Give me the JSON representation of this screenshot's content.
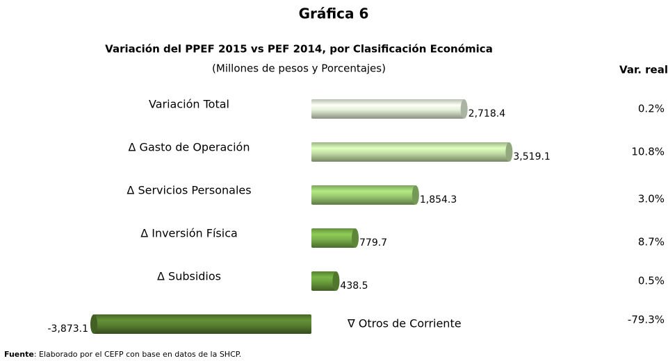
{
  "chart_data": {
    "type": "bar",
    "orientation": "horizontal",
    "title": "Gráfica 6",
    "subtitle": "Variación del PPEF 2015 vs PEF 2014, por Clasificación Económica",
    "units": "(Millones de pesos y Porcentajes)",
    "categories": [
      "Variación Total",
      "Δ Gasto de Operación",
      "Δ Servicios Personales",
      "Δ Inversión Física",
      "Δ Subsidios",
      "∇ Otros de Corriente"
    ],
    "values": [
      2718.4,
      3519.1,
      1854.3,
      779.7,
      438.5,
      -3873.1
    ],
    "value_labels": [
      "2,718.4",
      "3,519.1",
      "1,854.3",
      "779.7",
      "438.5",
      "-3,873.1"
    ],
    "colors": [
      "#e4f0d8",
      "#c4e0a8",
      "#9ccc72",
      "#7cb24c",
      "#6a9e3c",
      "#587f30"
    ],
    "var_real": {
      "title": "Var. real",
      "values": [
        0.2,
        10.8,
        3.0,
        8.7,
        0.5,
        -79.3
      ],
      "value_labels": [
        "0.2%",
        "10.8%",
        "3.0%",
        "8.7%",
        "0.5%",
        "-79.3%"
      ]
    },
    "source": {
      "label": "Fuente",
      "text": ": Elaborado por el CEFP con base en datos de la SHCP."
    }
  }
}
